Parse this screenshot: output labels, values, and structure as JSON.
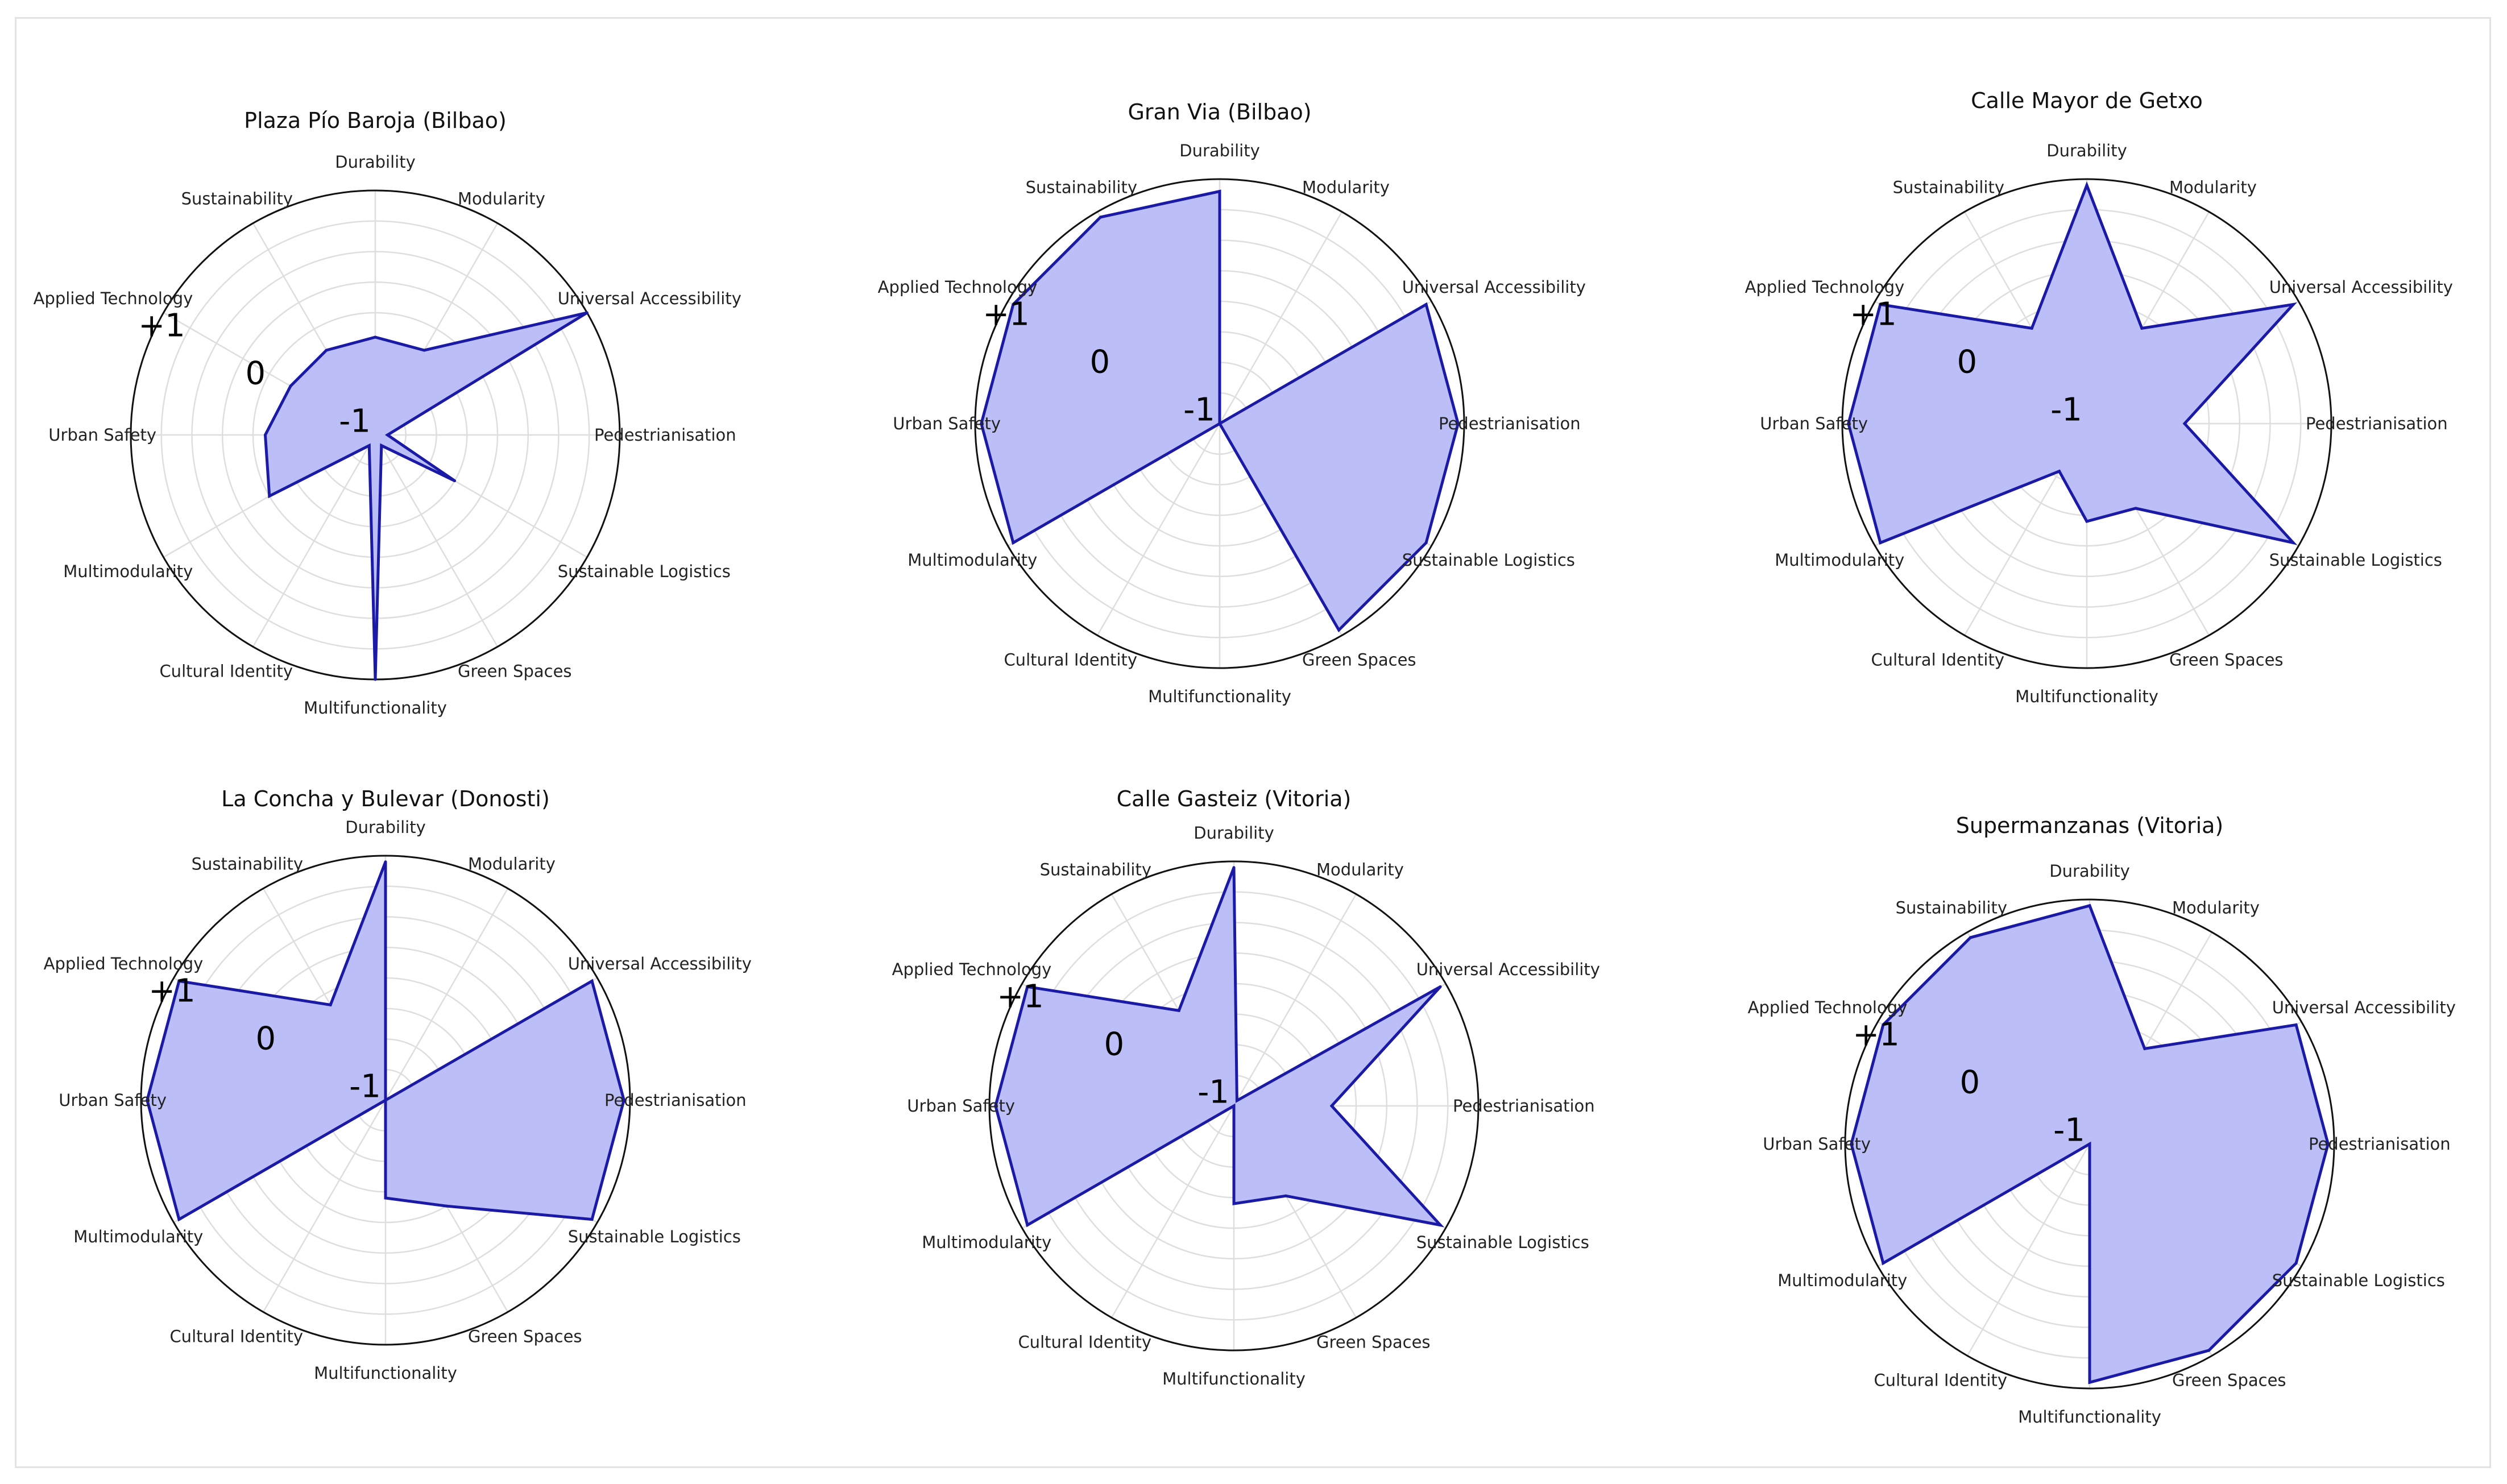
{
  "figure": {
    "colors": {
      "fill": "#b8baf7",
      "stroke": "#1a1aa6",
      "grid": "#dedede",
      "outer": "#111111"
    }
  },
  "chart_data": [
    {
      "type": "radar",
      "title": "Plaza Pío Baroja (Bilbao)",
      "axes": [
        "Durability",
        "Modularity",
        "Universal Accessibility",
        "Pedestrianisation",
        "Sustainable Logistics",
        "Green Spaces",
        "Multifunctionality",
        "Cultural Identity",
        "Multimodularity",
        "Urban Safety",
        "Applied Technology",
        "Sustainability"
      ],
      "values": [
        -0.2,
        -0.2,
        1.0,
        -0.9,
        -0.25,
        -0.9,
        1.0,
        -0.9,
        0.0,
        -0.1,
        -0.2,
        -0.2
      ],
      "scale_labels": [
        "-1",
        "0",
        "+1"
      ],
      "range": [
        -1,
        1
      ]
    },
    {
      "type": "radar",
      "title": "Gran Via (Bilbao)",
      "axes": [
        "Durability",
        "Modularity",
        "Universal Accessibility",
        "Pedestrianisation",
        "Sustainable Logistics",
        "Green Spaces",
        "Multifunctionality",
        "Cultural Identity",
        "Multimodularity",
        "Urban Safety",
        "Applied Technology",
        "Sustainability"
      ],
      "values": [
        0.9,
        -1.0,
        0.95,
        0.95,
        0.95,
        0.95,
        -1.0,
        -1.0,
        0.95,
        0.95,
        0.95,
        0.95
      ],
      "scale_labels": [
        "-1",
        "0",
        "+1"
      ],
      "range": [
        -1,
        1
      ]
    },
    {
      "type": "radar",
      "title": "Calle Mayor de Getxo",
      "axes": [
        "Durability",
        "Modularity",
        "Universal Accessibility",
        "Pedestrianisation",
        "Sustainable Logistics",
        "Green Spaces",
        "Multifunctionality",
        "Cultural Identity",
        "Multimodularity",
        "Urban Safety",
        "Applied Technology",
        "Sustainability"
      ],
      "values": [
        0.95,
        -0.1,
        0.95,
        -0.2,
        0.95,
        -0.2,
        -0.2,
        -0.55,
        0.95,
        0.95,
        0.95,
        -0.1
      ],
      "scale_labels": [
        "-1",
        "0",
        "+1"
      ],
      "range": [
        -1,
        1
      ]
    },
    {
      "type": "radar",
      "title": "La Concha y Bulevar (Donosti)",
      "axes": [
        "Durability",
        "Modularity",
        "Universal Accessibility",
        "Pedestrianisation",
        "Sustainable Logistics",
        "Green Spaces",
        "Multifunctionality",
        "Cultural Identity",
        "Multimodularity",
        "Urban Safety",
        "Applied Technology",
        "Sustainability"
      ],
      "values": [
        0.95,
        -1.0,
        0.95,
        0.95,
        0.95,
        0.0,
        -0.2,
        -1.0,
        0.95,
        0.95,
        0.95,
        -0.1
      ],
      "scale_labels": [
        "-1",
        "0",
        "+1"
      ],
      "range": [
        -1,
        1
      ]
    },
    {
      "type": "radar",
      "title": "Calle Gasteiz (Vitoria)",
      "axes": [
        "Durability",
        "Modularity",
        "Universal Accessibility",
        "Pedestrianisation",
        "Sustainable Logistics",
        "Green Spaces",
        "Multifunctionality",
        "Cultural Identity",
        "Multimodularity",
        "Urban Safety",
        "Applied Technology",
        "Sustainability"
      ],
      "values": [
        0.95,
        -0.95,
        0.95,
        -0.2,
        0.95,
        -0.15,
        -0.2,
        -1.0,
        0.95,
        0.95,
        0.95,
        -0.1
      ],
      "scale_labels": [
        "-1",
        "0",
        "+1"
      ],
      "range": [
        -1,
        1
      ]
    },
    {
      "type": "radar",
      "title": "Supermanzanas (Vitoria)",
      "axes": [
        "Durability",
        "Modularity",
        "Universal Accessibility",
        "Pedestrianisation",
        "Sustainable Logistics",
        "Green Spaces",
        "Multifunctionality",
        "Cultural Identity",
        "Multimodularity",
        "Urban Safety",
        "Applied Technology",
        "Sustainability"
      ],
      "values": [
        0.95,
        -0.1,
        0.95,
        0.95,
        0.95,
        0.95,
        0.95,
        -1.0,
        0.95,
        0.95,
        0.95,
        0.95
      ],
      "scale_labels": [
        "-1",
        "0",
        "+1"
      ],
      "range": [
        -1,
        1
      ]
    }
  ]
}
